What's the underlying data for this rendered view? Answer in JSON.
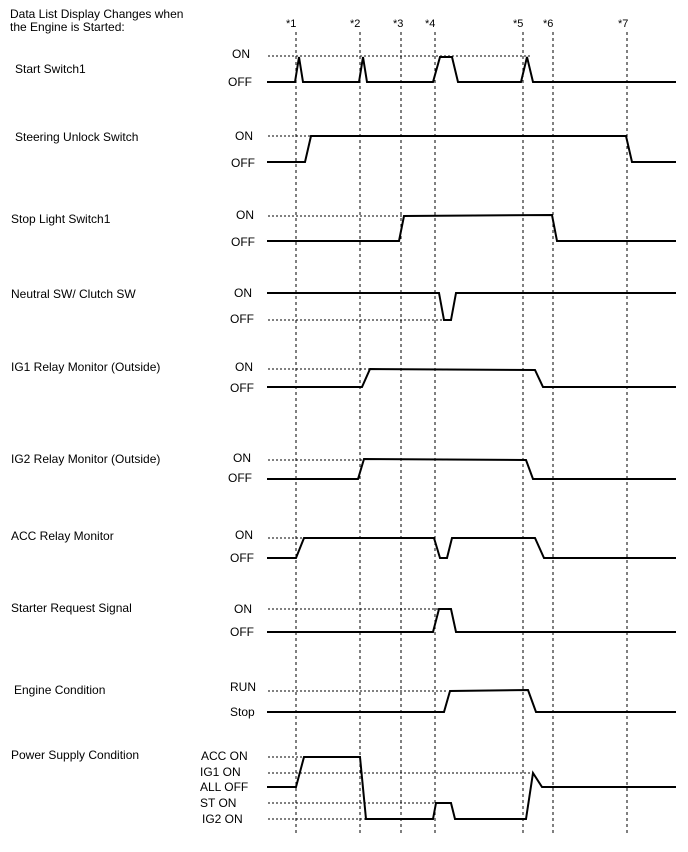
{
  "title": {
    "line1": "Data List Display Changes when",
    "line2": "the Engine is Started:"
  },
  "markers": [
    "*1",
    "*2",
    "*3",
    "*4",
    "*5",
    "*6",
    "*7"
  ],
  "signals": [
    {
      "label": "Start Switch1",
      "states": [
        "ON",
        "OFF"
      ]
    },
    {
      "label": "Steering Unlock Switch",
      "states": [
        "ON",
        "OFF"
      ]
    },
    {
      "label": "Stop Light Switch1",
      "states": [
        "ON",
        "OFF"
      ]
    },
    {
      "label": "Neutral SW/ Clutch SW",
      "states": [
        "ON",
        "OFF"
      ]
    },
    {
      "label": "IG1 Relay Monitor (Outside)",
      "states": [
        "ON",
        "OFF"
      ]
    },
    {
      "label": "IG2 Relay Monitor (Outside)",
      "states": [
        "ON",
        "OFF"
      ]
    },
    {
      "label": "ACC Relay Monitor",
      "states": [
        "ON",
        "OFF"
      ]
    },
    {
      "label": "Starter Request Signal",
      "states": [
        "ON",
        "OFF"
      ]
    },
    {
      "label": "Engine Condition",
      "states": [
        "RUN",
        "Stop"
      ]
    },
    {
      "label": "Power Supply Condition",
      "states": [
        "ACC ON",
        "IG1 ON",
        "ALL OFF",
        "ST ON",
        "IG2 ON"
      ]
    }
  ]
}
